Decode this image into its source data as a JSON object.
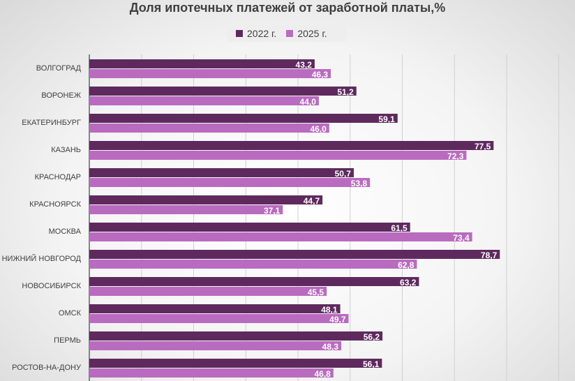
{
  "chart_data": {
    "type": "bar",
    "orientation": "horizontal",
    "title": "Доля ипотечных платежей от заработной платы,%",
    "categories": [
      "ВОЛГОГРАД",
      "ВОРОНЕЖ",
      "ЕКАТЕРИНБУРГ",
      "КАЗАНЬ",
      "КРАСНОДАР",
      "КРАСНОЯРСК",
      "МОСКВА",
      "НИЖНИЙ НОВГОРОД",
      "НОВОСИБИРСК",
      "ОМСК",
      "ПЕРМЬ",
      "РОСТОВ-НА-ДОНУ"
    ],
    "series": [
      {
        "name": "2022 г.",
        "color": "#5e2a5e",
        "values": [
          43.2,
          51.2,
          59.1,
          77.5,
          50.7,
          44.7,
          61.5,
          78.7,
          63.2,
          48.1,
          56.2,
          56.1
        ],
        "labels": [
          "43,2",
          "51,2",
          "59,1",
          "77,5",
          "50,7",
          "44,7",
          "61,5",
          "78,7",
          "63,2",
          "48,1",
          "56,2",
          "56,1"
        ]
      },
      {
        "name": "2025 г.",
        "color": "#b96bbf",
        "values": [
          46.3,
          44.0,
          46.0,
          72.3,
          53.8,
          37.1,
          73.4,
          62.8,
          45.5,
          49.7,
          48.3,
          46.8
        ],
        "labels": [
          "46,3",
          "44,0",
          "46,0",
          "72,3",
          "53,8",
          "37,1",
          "73,4",
          "62,8",
          "45,5",
          "49,7",
          "48,3",
          "46,8"
        ]
      }
    ],
    "xlim": [
      0,
      90
    ],
    "grid": true,
    "legend_position": "top-center"
  }
}
